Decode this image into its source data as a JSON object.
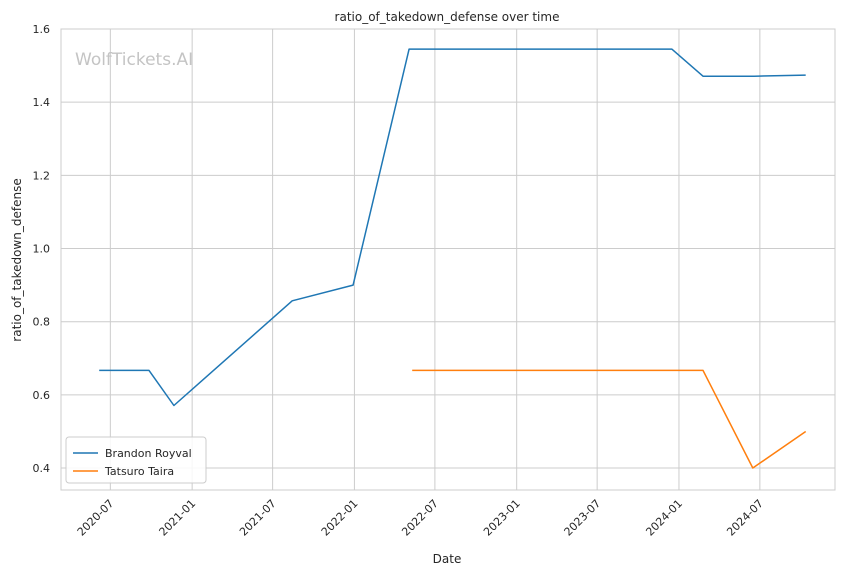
{
  "chart_data": {
    "type": "line",
    "title": "ratio_of_takedown_defense over time",
    "xlabel": "Date",
    "ylabel": "ratio_of_takedown_defense",
    "watermark": "WolfTickets.AI",
    "xlim": [
      "2020-03-12",
      "2024-12-17"
    ],
    "ylim": [
      0.34,
      1.6
    ],
    "x_ticks": [
      "2020-07",
      "2021-01",
      "2021-07",
      "2022-01",
      "2022-07",
      "2023-01",
      "2023-07",
      "2024-01",
      "2024-07"
    ],
    "y_ticks": [
      "0.4",
      "0.6",
      "0.8",
      "1.0",
      "1.2",
      "1.4",
      "1.6"
    ],
    "grid": true,
    "legend_position": "lower-left",
    "series": [
      {
        "name": "Brandon Royval",
        "color": "#1f77b4",
        "points": [
          {
            "x": "2020-06-06",
            "y": 0.667
          },
          {
            "x": "2020-09-26",
            "y": 0.667
          },
          {
            "x": "2020-11-21",
            "y": 0.571
          },
          {
            "x": "2021-08-14",
            "y": 0.857
          },
          {
            "x": "2021-12-29",
            "y": 0.9
          },
          {
            "x": "2022-05-04",
            "y": 1.545
          },
          {
            "x": "2023-12-16",
            "y": 1.545
          },
          {
            "x": "2024-02-24",
            "y": 1.471
          },
          {
            "x": "2024-06-18",
            "y": 1.471
          },
          {
            "x": "2024-10-12",
            "y": 1.474
          }
        ]
      },
      {
        "name": "Tatsuro Taira",
        "color": "#ff7f0e",
        "points": [
          {
            "x": "2022-05-11",
            "y": 0.667
          },
          {
            "x": "2024-02-24",
            "y": 0.667
          },
          {
            "x": "2024-06-15",
            "y": 0.4
          },
          {
            "x": "2024-10-12",
            "y": 0.5
          }
        ]
      }
    ]
  }
}
